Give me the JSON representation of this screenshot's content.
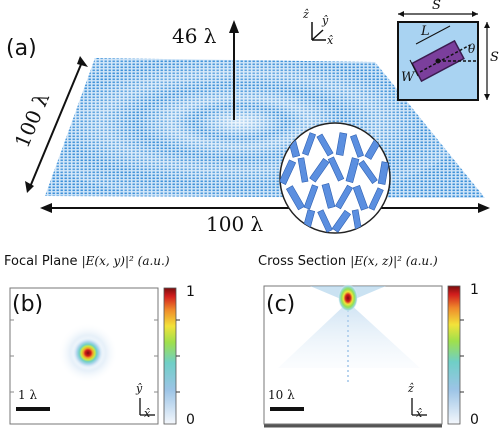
{
  "panel_a": {
    "label": "(a)",
    "height_label": "46 λ",
    "side_label_left": "100 λ",
    "side_label_bottom": "100 λ",
    "axes": {
      "z": "ẑ",
      "y": "ŷ",
      "x": "x̂"
    },
    "unit_cell": {
      "s_top": "S",
      "s_right": "S",
      "L": "L",
      "W": "W",
      "theta": "θ"
    }
  },
  "panel_b": {
    "title": "Focal Plane",
    "quantity": "|E(x, y)|² (a.u.)",
    "label": "(b)",
    "scalebar": "1 λ",
    "axes": {
      "y": "ŷ",
      "x": "x̂"
    },
    "colorbar": {
      "max": "1",
      "min": "0"
    }
  },
  "panel_c": {
    "title": "Cross Section",
    "quantity": "|E(x, z)|² (a.u.)",
    "label": "(c)",
    "scalebar": "10 λ",
    "axes": {
      "z": "ẑ",
      "x": "x̂"
    },
    "colorbar": {
      "max": "1",
      "min": "0"
    }
  },
  "colors": {
    "metasurface": "#3b8fd8",
    "cell_bg": "#a9d3f2",
    "pillar": "#7b3f9c",
    "colormap": [
      "#f4f7fc",
      "#9cc4e6",
      "#6fcfc7",
      "#9fe04c",
      "#f2e23a",
      "#ef8a2b",
      "#d21d1d",
      "#7a0d0d"
    ]
  }
}
